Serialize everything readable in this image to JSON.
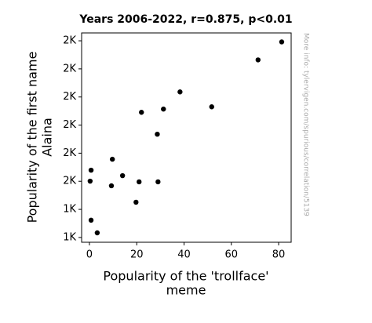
{
  "chart_data": {
    "type": "scatter",
    "title": "Years 2006-2022, r=0.875, p<0.01",
    "xlabel": [
      "Popularity of the 'trollface'",
      "meme"
    ],
    "ylabel": [
      "Popularity of the first name",
      "Alaina"
    ],
    "watermark": "More info: tylervigen.com/spurious/correlation/5139",
    "color": "#000000",
    "x": [
      0.7,
      3.3,
      0.7,
      0.3,
      9.7,
      9.3,
      14,
      19.7,
      21,
      29,
      22,
      28.7,
      31.3,
      38.3,
      51.7,
      71.3,
      81.3
    ],
    "values": [
      1323,
      1233,
      1679,
      1601,
      1757,
      1568,
      1640,
      1451,
      1596,
      1596,
      2091,
      1935,
      2114,
      2236,
      2130,
      2464,
      2592
    ],
    "xlim": [
      -3.3,
      85.3
    ],
    "xticks": [
      0,
      20,
      40,
      60,
      80
    ],
    "ylim": [
      1166,
      2656
    ],
    "yticks": [
      {
        "value": 1200,
        "label": "1K"
      },
      {
        "value": 1400,
        "label": "1K"
      },
      {
        "value": 1600,
        "label": "2K"
      },
      {
        "value": 1800,
        "label": "2K"
      },
      {
        "value": 2000,
        "label": "2K"
      },
      {
        "value": 2200,
        "label": "2K"
      },
      {
        "value": 2400,
        "label": "2K"
      },
      {
        "value": 2600,
        "label": "2K"
      }
    ]
  }
}
